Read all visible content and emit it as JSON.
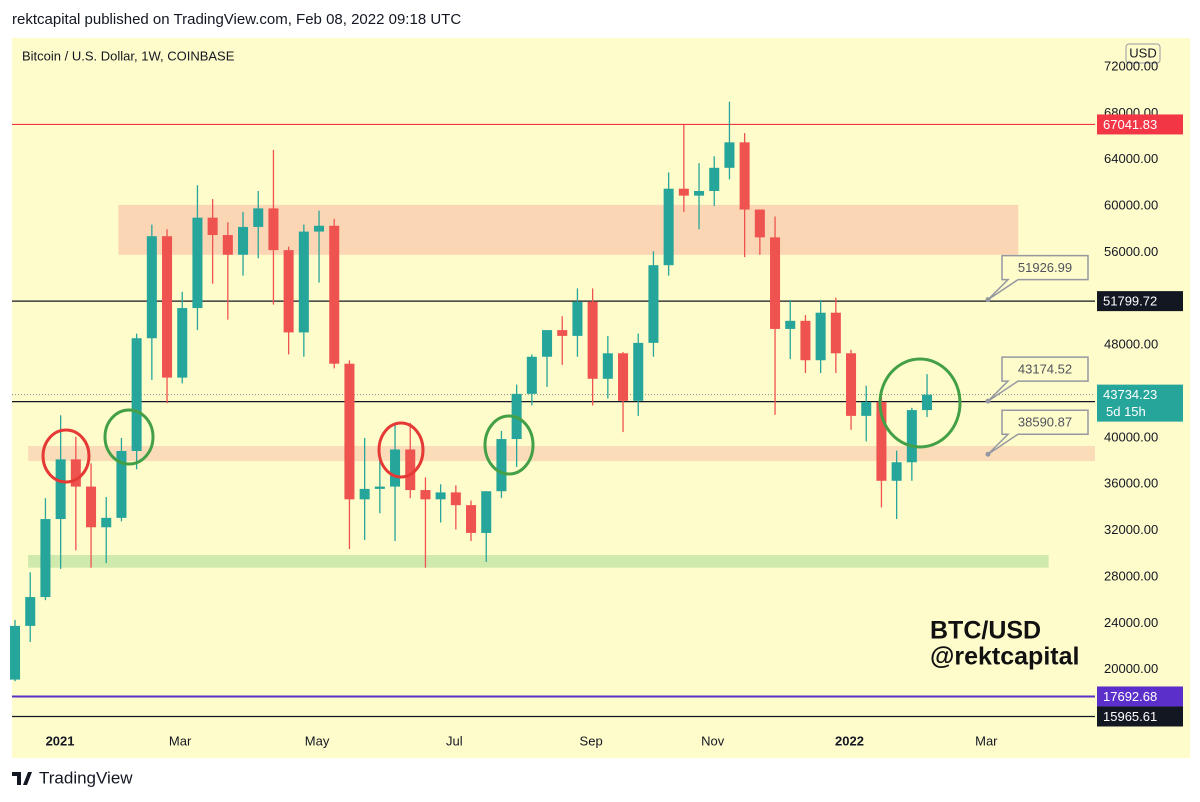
{
  "chart_data": {
    "type": "candlestick",
    "header": "rektcapital published on TradingView.com, Feb 08, 2022 09:18 UTC",
    "title": "Bitcoin / U.S. Dollar, 1W, COINBASE",
    "currency": "USD",
    "brand": "TradingView",
    "annotation": [
      "BTC/USD",
      "@rektcapital"
    ],
    "up_color": "#26a69a",
    "down_color": "#ef5350",
    "xlim": [
      -0.2,
      71.05
    ],
    "xticks": [
      {
        "value": 2.96,
        "label": "2021"
      },
      {
        "value": 10.86,
        "label": "Mar"
      },
      {
        "value": 19.87,
        "label": "May"
      },
      {
        "value": 28.9,
        "label": "Jul"
      },
      {
        "value": 37.9,
        "label": "Sep"
      },
      {
        "value": 45.9,
        "label": "Nov"
      },
      {
        "value": 54.9,
        "label": "2022"
      },
      {
        "value": 63.9,
        "label": "Mar"
      }
    ],
    "ylim": [
      14800,
      74500
    ],
    "yticks": [
      {
        "value": 20000,
        "label": "20000.00"
      },
      {
        "value": 24000,
        "label": "24000.00"
      },
      {
        "value": 28000,
        "label": "28000.00"
      },
      {
        "value": 32000,
        "label": "32000.00"
      },
      {
        "value": 36000,
        "label": "36000.00"
      },
      {
        "value": 40000,
        "label": "40000.00"
      },
      {
        "value": 44000,
        "label": "44000.00"
      },
      {
        "value": 48000,
        "label": "48000.00"
      },
      {
        "value": 52000,
        "label": "52000.00"
      },
      {
        "value": 56000,
        "label": "56000.00"
      },
      {
        "value": 60000,
        "label": "60000.00"
      },
      {
        "value": 64000,
        "label": "64000.00"
      },
      {
        "value": 68000,
        "label": "68000.00"
      },
      {
        "value": 72000,
        "label": "72000.00"
      }
    ],
    "open": [
      19150,
      23780,
      26270,
      33000,
      38150,
      35800,
      32290,
      33100,
      38870,
      48600,
      57400,
      45200,
      51200,
      59000,
      57500,
      55800,
      58200,
      59800,
      56200,
      49100,
      57800,
      58300,
      46400,
      34700,
      35600,
      35800,
      39000,
      35500,
      34700,
      35300,
      34200,
      31800,
      35400,
      39900,
      43800,
      47000,
      49300,
      48800,
      51750,
      45100,
      47300,
      43200,
      48200,
      54900,
      61500,
      60900,
      61300,
      63300,
      65500,
      59700,
      57300,
      49400,
      50100,
      46700,
      50800,
      47300,
      41900,
      43100,
      36300,
      37900,
      42400
    ],
    "high": [
      24300,
      28400,
      34800,
      41950,
      40100,
      37800,
      34900,
      40000,
      49000,
      58400,
      58000,
      52600,
      61800,
      60600,
      58600,
      59500,
      61300,
      64850,
      56500,
      58400,
      59600,
      58900,
      46700,
      40000,
      39500,
      41300,
      41300,
      36600,
      36000,
      35900,
      34600,
      35400,
      40600,
      44600,
      47200,
      49300,
      50500,
      52900,
      52900,
      48800,
      47400,
      49000,
      56100,
      62900,
      67000,
      63700,
      64300,
      69000,
      66300,
      59600,
      59100,
      51900,
      50600,
      51900,
      52100,
      47600,
      44500,
      43500,
      38900,
      42600,
      45500
    ],
    "low": [
      19000,
      22400,
      26000,
      28700,
      30300,
      28800,
      29200,
      32800,
      37300,
      45000,
      43000,
      44700,
      49300,
      53300,
      50200,
      54000,
      55500,
      51500,
      47200,
      47000,
      53400,
      46000,
      30400,
      31200,
      33500,
      31100,
      34800,
      28800,
      32700,
      32100,
      31100,
      29300,
      34800,
      37500,
      42800,
      44400,
      46300,
      47000,
      42800,
      43400,
      40500,
      41900,
      47000,
      54000,
      59500,
      58000,
      60000,
      62300,
      55600,
      55800,
      42000,
      46800,
      45600,
      45600,
      45600,
      40700,
      39700,
      34000,
      33000,
      36300,
      41800
    ],
    "close": [
      23780,
      26270,
      33000,
      38150,
      35800,
      32290,
      33100,
      38870,
      48600,
      57400,
      45200,
      51200,
      59000,
      57500,
      55800,
      58200,
      59800,
      56200,
      49100,
      57800,
      58300,
      46400,
      34700,
      35600,
      35800,
      39000,
      35500,
      34700,
      35300,
      34200,
      31800,
      35400,
      39900,
      43800,
      47000,
      49300,
      48800,
      51750,
      45100,
      47300,
      43200,
      48200,
      54900,
      61500,
      60900,
      61300,
      63300,
      65500,
      59700,
      57300,
      49400,
      50100,
      46700,
      50800,
      47300,
      41900,
      43100,
      36300,
      37900,
      42400,
      43734.23
    ],
    "zones": [
      {
        "from": 55800,
        "to": 60100,
        "start": 6.8,
        "end": 66.0,
        "color": "#f9cfb0"
      },
      {
        "from": 38000,
        "to": 39300,
        "start": 0.86,
        "end": 71.05,
        "color": "#f9d6b6"
      },
      {
        "from": 28800,
        "to": 29900,
        "start": 0.86,
        "end": 68.0,
        "color": "#c8e6a8"
      }
    ],
    "levels": [
      {
        "value": 67041.83,
        "color": "#f23645"
      },
      {
        "value": 51799.72,
        "color": "#131722"
      },
      {
        "value": 43127.17,
        "color": "#131722"
      },
      {
        "value": 17692.68,
        "color": "#5b2fc9"
      },
      {
        "value": 15965.61,
        "color": "#131722"
      }
    ],
    "last_price": 43734.23,
    "countdown": "5d 15h",
    "callouts": [
      51926.99,
      43174.52,
      38590.87
    ]
  }
}
